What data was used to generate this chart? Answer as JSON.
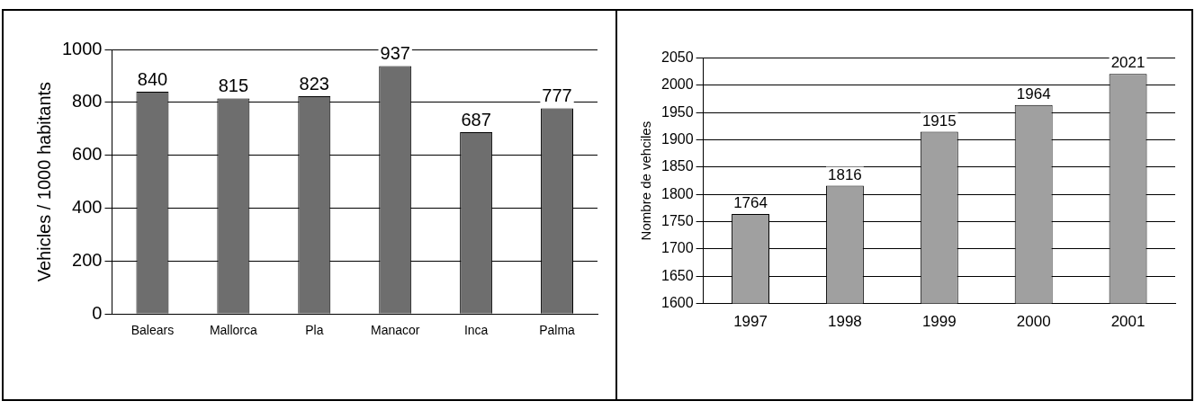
{
  "chart_data": [
    {
      "type": "bar",
      "ylabel": "Vehicles / 1000 habitants",
      "categories": [
        "Balears",
        "Mallorca",
        "Pla",
        "Manacor",
        "Inca",
        "Palma"
      ],
      "values": [
        840,
        815,
        823,
        937,
        687,
        777
      ],
      "color": "#6e6e6e",
      "ylim": [
        0,
        1000
      ],
      "yticks": [
        0,
        200,
        400,
        600,
        800,
        1000
      ],
      "grid": "y",
      "data_labels": true
    },
    {
      "type": "bar",
      "ylabel": "Nombre de vehciles",
      "categories": [
        "1997",
        "1998",
        "1999",
        "2000",
        "2001"
      ],
      "values": [
        1764,
        1816,
        1915,
        1964,
        2021
      ],
      "color": "#a0a0a0",
      "ylim": [
        1600,
        2050
      ],
      "yticks": [
        1600,
        1650,
        1700,
        1750,
        1800,
        1850,
        1900,
        1950,
        2000,
        2050
      ],
      "grid": "y",
      "data_labels": true
    }
  ]
}
